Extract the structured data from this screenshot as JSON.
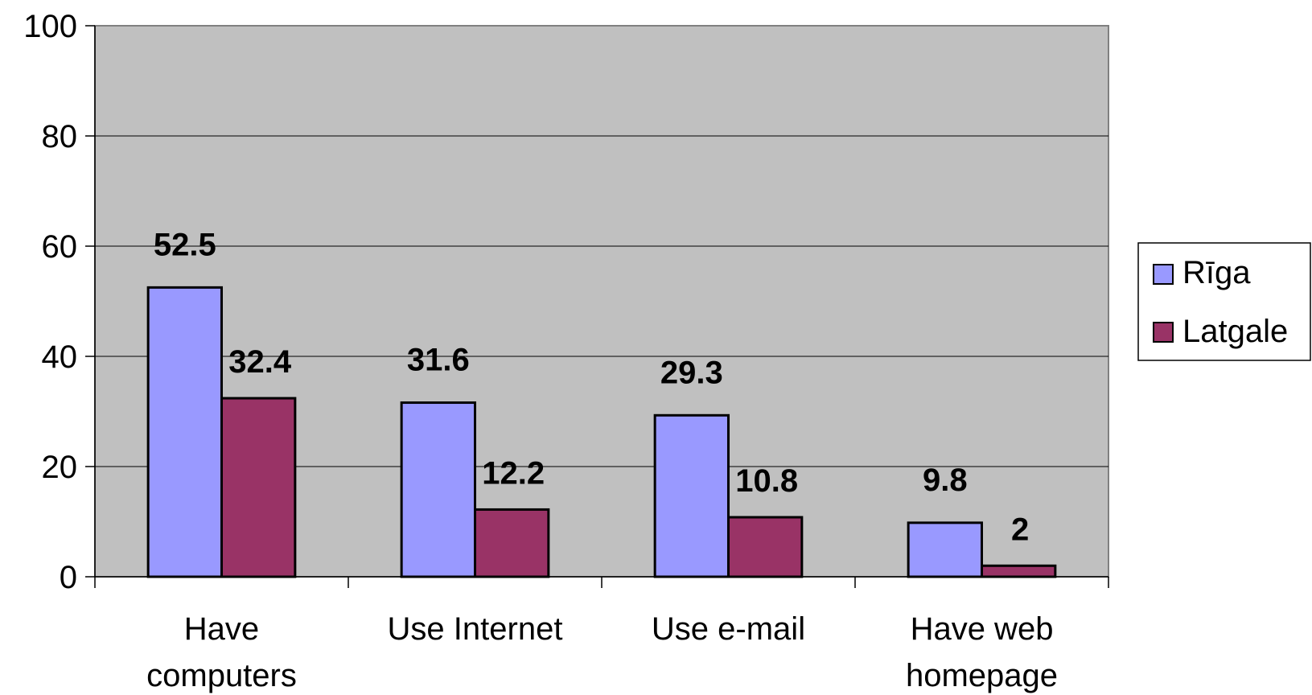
{
  "chart_data": {
    "type": "bar",
    "title": "",
    "xlabel": "",
    "ylabel": "",
    "categories": [
      [
        "Have",
        "computers"
      ],
      [
        "Use Internet"
      ],
      [
        "Use e-mail"
      ],
      [
        "Have web",
        "homepage"
      ]
    ],
    "series": [
      {
        "name": "Rīga",
        "values": [
          52.5,
          31.6,
          29.3,
          9.8
        ],
        "color": "#9999ff"
      },
      {
        "name": "Latgale",
        "values": [
          32.4,
          12.2,
          10.8,
          2
        ],
        "color": "#993366"
      }
    ],
    "data_labels": [
      [
        "52.5",
        "31.6",
        "29.3",
        "9.8"
      ],
      [
        "32.4",
        "12.2",
        "10.8",
        "2"
      ]
    ],
    "ylim": [
      0,
      100
    ],
    "yticks": [
      "0",
      "20",
      "40",
      "60",
      "80",
      "100"
    ],
    "grid": true,
    "plot_background": "#c0c0c0",
    "legend_position": "right"
  }
}
